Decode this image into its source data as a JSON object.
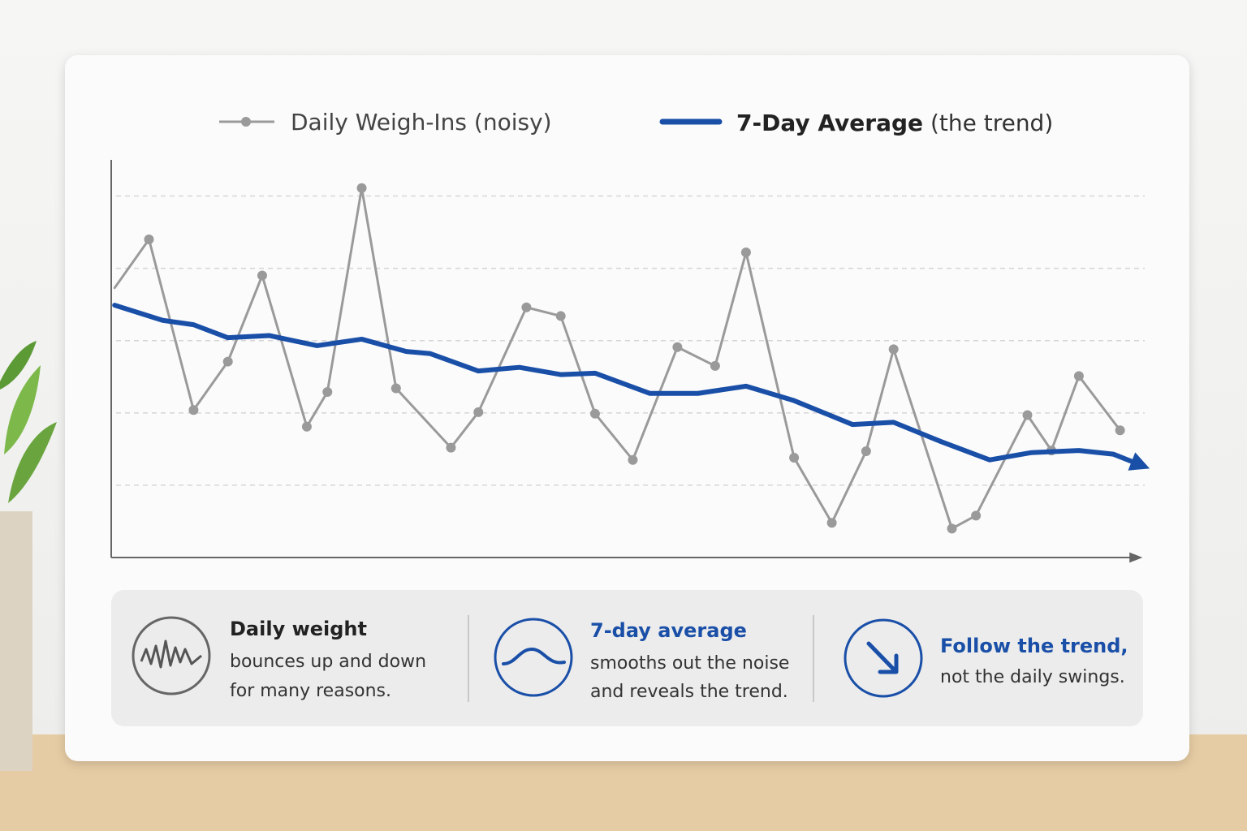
{
  "chart_data": {
    "type": "line",
    "xlim": [
      0,
      30
    ],
    "ylim": [
      0,
      5.5
    ],
    "yticks": [
      1,
      2,
      3,
      4,
      5
    ],
    "grid": true,
    "series": [
      {
        "name": "Daily Weigh-Ins (noisy)",
        "color": "#9a9a9a",
        "markers": true,
        "x": [
          0.1,
          1.1,
          2.4,
          3.4,
          4.4,
          5.7,
          6.3,
          7.3,
          8.3,
          9.9,
          10.7,
          12.1,
          13.1,
          14.1,
          15.2,
          16.5,
          17.6,
          18.5,
          19.9,
          21.0,
          22.0,
          22.8,
          24.5,
          25.2,
          26.7,
          27.4,
          28.2,
          29.4
        ],
        "values": [
          3.73,
          4.4,
          2.04,
          2.71,
          3.9,
          1.81,
          2.29,
          5.11,
          2.34,
          1.52,
          2.01,
          3.46,
          3.34,
          1.99,
          1.35,
          2.91,
          2.65,
          4.22,
          1.38,
          0.48,
          1.47,
          2.88,
          0.4,
          0.58,
          1.97,
          1.48,
          2.51,
          1.76
        ]
      },
      {
        "name": "7-Day Average",
        "note": "(the trend)",
        "color": "#1a4fa8",
        "markers": false,
        "x": [
          0.1,
          1.5,
          2.4,
          3.4,
          4.6,
          6.0,
          7.3,
          8.6,
          9.3,
          10.7,
          11.9,
          13.1,
          14.1,
          15.7,
          17.1,
          18.5,
          19.9,
          21.6,
          22.8,
          24.2,
          25.6,
          26.8,
          28.2,
          29.2,
          30.0
        ],
        "values": [
          3.49,
          3.28,
          3.22,
          3.04,
          3.07,
          2.93,
          3.02,
          2.85,
          2.82,
          2.58,
          2.63,
          2.53,
          2.55,
          2.27,
          2.27,
          2.37,
          2.17,
          1.84,
          1.87,
          1.6,
          1.35,
          1.45,
          1.48,
          1.43,
          1.28
        ]
      }
    ]
  },
  "info_cards": [
    {
      "title": "Daily weight",
      "lines": [
        "bounces up and down",
        "for many reasons."
      ]
    },
    {
      "title": "7-day average",
      "lines": [
        "smooths out the noise",
        "and reveals the trend."
      ]
    },
    {
      "title": "Follow the trend,",
      "lines": [
        "not the daily swings."
      ]
    }
  ]
}
